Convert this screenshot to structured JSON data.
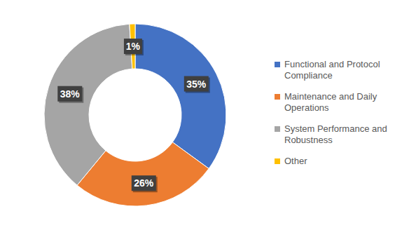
{
  "chart_data": {
    "type": "pie",
    "categories": [
      "Functional and Protocol Compliance",
      "Maintenance and Daily Operations",
      "System Performance and Robustness",
      "Other"
    ],
    "values": [
      35,
      26,
      38,
      1
    ],
    "value_labels": [
      "35%",
      "26%",
      "38%",
      "1%"
    ],
    "colors": [
      "#4472c4",
      "#ed7d31",
      "#a5a5a5",
      "#ffc000"
    ],
    "data_labels": true,
    "legend": "right"
  }
}
